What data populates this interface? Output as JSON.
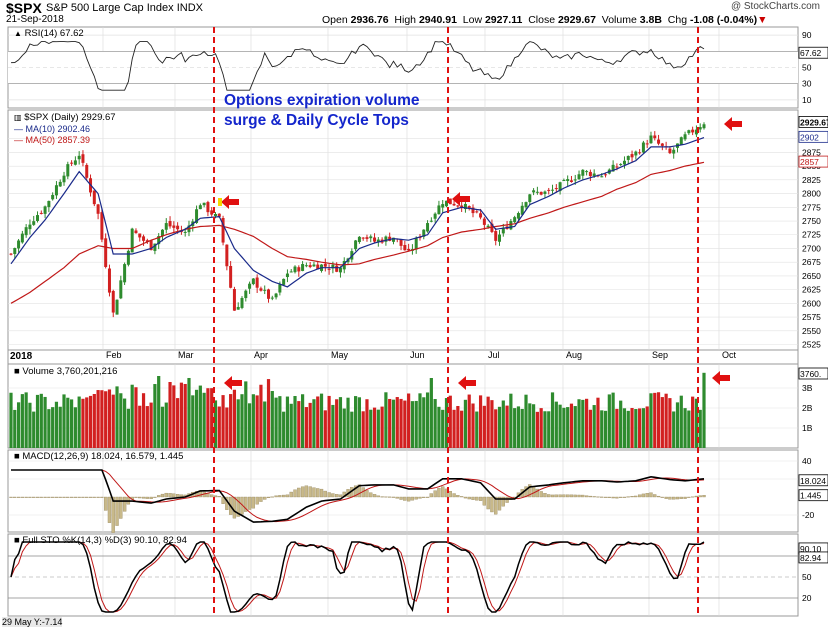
{
  "header": {
    "symbol": "$SPX",
    "name": "S&P 500 Large Cap Index",
    "exchange": "INDX",
    "date": "21-Sep-2018",
    "watermark": "@ StockCharts.com",
    "open_label": "Open",
    "open": "2936.76",
    "high_label": "High",
    "high": "2940.91",
    "low_label": "Low",
    "low": "2927.11",
    "close_label": "Close",
    "close": "2929.67",
    "volume_label": "Volume",
    "volume": "3.8B",
    "chg_label": "Chg",
    "chg": "-1.08 (-0.04%)"
  },
  "annotation": "Options expiration volume\nsurge & Daily Cycle Tops",
  "panels": {
    "rsi": {
      "label": "RSI(14) 67.62",
      "value_box": "67.62",
      "ticks": [
        "90",
        "70",
        "50",
        "30",
        "10"
      ]
    },
    "price": {
      "label": "$SPX (Daily) 2929.67",
      "ma10_label": "MA(10) 2902.46",
      "ma50_label": "MA(50) 2857.39",
      "boxes": [
        "2929.67",
        "2902",
        "2857"
      ],
      "ticks": [
        "2900",
        "2875",
        "2850",
        "2825",
        "2800",
        "2775",
        "2750",
        "2725",
        "2700",
        "2675",
        "2650",
        "2625",
        "2600",
        "2575",
        "2550",
        "2525"
      ]
    },
    "volume": {
      "label": "Volume 3,760,201,216",
      "value_box": "3760.",
      "ticks": [
        "3B",
        "2B",
        "1B"
      ]
    },
    "macd": {
      "label": "MACD(12,26,9) 18.024, 16.579, 1.445",
      "boxes": [
        "18.024",
        "1.445"
      ],
      "ticks": [
        "40",
        "20",
        "-20"
      ]
    },
    "sto": {
      "label": "Full STO %K(14,3) %D(3) 90.10, 82.94",
      "boxes": [
        "90.10",
        "82.94"
      ],
      "ticks": [
        "80",
        "50",
        "20"
      ]
    }
  },
  "x_axis": {
    "year": "2018",
    "months": [
      "Feb",
      "Mar",
      "Apr",
      "May",
      "Jun",
      "Jul",
      "Aug",
      "Sep",
      "Oct"
    ]
  },
  "footer": "29 May Y:-7.14",
  "colors": {
    "up": "#2e8b2e",
    "down": "#d22020",
    "ma10": "#1a2a8a",
    "ma50": "#c01818",
    "vline": "#e01010",
    "arrow": "#e01010",
    "annotation": "#1426cc"
  },
  "chart_data": {
    "type": "line",
    "title": "$SPX S&P 500 Large Cap Index",
    "x": [
      "2018-01-02",
      "2018-01-09",
      "2018-01-16",
      "2018-01-23",
      "2018-01-26",
      "2018-02-01",
      "2018-02-08",
      "2018-02-15",
      "2018-02-22",
      "2018-02-27",
      "2018-03-06",
      "2018-03-12",
      "2018-03-16",
      "2018-03-23",
      "2018-03-29",
      "2018-04-06",
      "2018-04-13",
      "2018-04-20",
      "2018-04-27",
      "2018-05-04",
      "2018-05-11",
      "2018-05-18",
      "2018-05-25",
      "2018-05-29",
      "2018-06-05",
      "2018-06-12",
      "2018-06-15",
      "2018-06-22",
      "2018-06-28",
      "2018-07-06",
      "2018-07-13",
      "2018-07-20",
      "2018-07-27",
      "2018-08-03",
      "2018-08-10",
      "2018-08-17",
      "2018-08-24",
      "2018-08-31",
      "2018-09-07",
      "2018-09-14",
      "2018-09-21"
    ],
    "series": [
      {
        "name": "$SPX",
        "values": [
          2690,
          2748,
          2776,
          2839,
          2872,
          2762,
          2581,
          2732,
          2703,
          2744,
          2728,
          2783,
          2752,
          2588,
          2641,
          2604,
          2656,
          2670,
          2669,
          2663,
          2727,
          2713,
          2721,
          2690,
          2748,
          2786,
          2780,
          2754,
          2716,
          2759,
          2801,
          2802,
          2818,
          2840,
          2833,
          2850,
          2874,
          2902,
          2872,
          2904,
          2930
        ]
      },
      {
        "name": "MA(10)",
        "values": [
          2672,
          2720,
          2752,
          2800,
          2840,
          2800,
          2690,
          2690,
          2700,
          2720,
          2735,
          2755,
          2758,
          2700,
          2660,
          2640,
          2630,
          2655,
          2665,
          2665,
          2700,
          2710,
          2718,
          2715,
          2725,
          2765,
          2775,
          2770,
          2735,
          2740,
          2780,
          2795,
          2810,
          2825,
          2835,
          2845,
          2860,
          2885,
          2885,
          2890,
          2902
        ]
      },
      {
        "name": "MA(50)",
        "values": [
          2600,
          2620,
          2640,
          2665,
          2690,
          2705,
          2700,
          2700,
          2715,
          2725,
          2735,
          2740,
          2742,
          2735,
          2722,
          2700,
          2685,
          2680,
          2675,
          2670,
          2672,
          2680,
          2688,
          2695,
          2705,
          2720,
          2730,
          2735,
          2740,
          2745,
          2755,
          2765,
          2775,
          2785,
          2795,
          2808,
          2820,
          2835,
          2842,
          2850,
          2857
        ]
      }
    ],
    "ylim": [
      2515,
      2945
    ],
    "annotations": [
      "Options expiration volume surge & Daily Cycle Tops"
    ]
  }
}
